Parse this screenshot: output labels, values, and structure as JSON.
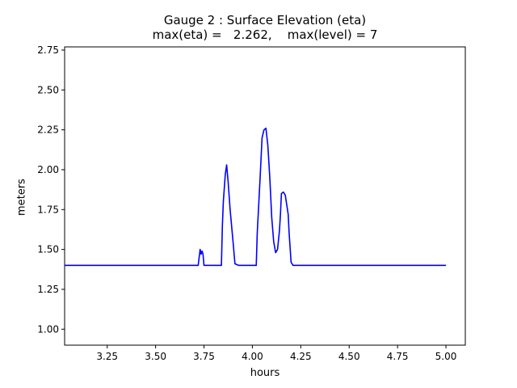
{
  "chart_data": {
    "type": "line",
    "title_line1": "Gauge 2 : Surface Elevation (eta)",
    "title_line2": "max(eta) =   2.262,    max(level) = 7",
    "xlabel": "hours",
    "ylabel": "meters",
    "xlim": [
      3.03,
      5.1
    ],
    "ylim": [
      0.9,
      2.77
    ],
    "xticks": [
      3.25,
      3.5,
      3.75,
      4.0,
      4.25,
      4.5,
      4.75,
      5.0
    ],
    "xtick_labels": [
      "3.25",
      "3.50",
      "3.75",
      "4.00",
      "4.25",
      "4.50",
      "4.75",
      "5.00"
    ],
    "yticks": [
      1.0,
      1.25,
      1.5,
      1.75,
      2.0,
      2.25,
      2.5,
      2.75
    ],
    "ytick_labels": [
      "1.00",
      "1.25",
      "1.50",
      "1.75",
      "2.00",
      "2.25",
      "2.50",
      "2.75"
    ],
    "grid": false,
    "series": [
      {
        "color": "#0000ff",
        "x": [
          3.03,
          3.72,
          3.73,
          3.735,
          3.74,
          3.745,
          3.75,
          3.76,
          3.79,
          3.84,
          3.845,
          3.85,
          3.86,
          3.867,
          3.875,
          3.885,
          3.9,
          3.91,
          3.93,
          4.02,
          4.025,
          4.04,
          4.05,
          4.06,
          4.07,
          4.08,
          4.09,
          4.1,
          4.11,
          4.12,
          4.13,
          4.14,
          4.145,
          4.15,
          4.16,
          4.17,
          4.175,
          4.18,
          4.185,
          4.19,
          4.2,
          4.21,
          4.3,
          5.0
        ],
        "y": [
          1.4,
          1.4,
          1.5,
          1.47,
          1.49,
          1.47,
          1.4,
          1.4,
          1.4,
          1.4,
          1.65,
          1.8,
          1.97,
          2.03,
          1.92,
          1.75,
          1.55,
          1.41,
          1.4,
          1.4,
          1.6,
          1.95,
          2.2,
          2.25,
          2.26,
          2.15,
          1.95,
          1.7,
          1.55,
          1.48,
          1.5,
          1.62,
          1.72,
          1.85,
          1.86,
          1.84,
          1.8,
          1.76,
          1.72,
          1.6,
          1.42,
          1.4,
          1.4,
          1.4
        ]
      }
    ]
  }
}
